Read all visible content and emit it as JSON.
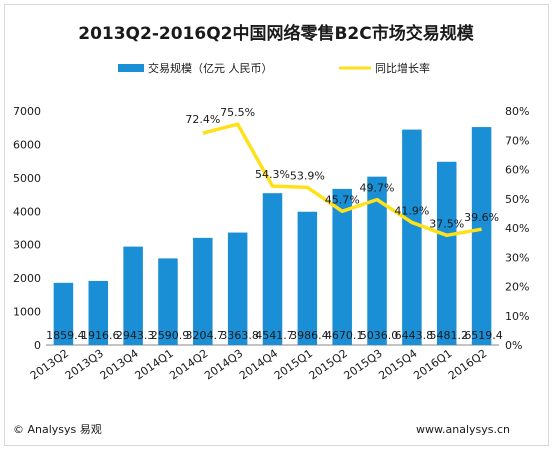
{
  "chart_data": {
    "type": "bar",
    "title": "2013Q2-2016Q2中国网络零售B2C市场交易规模",
    "categories": [
      "2013Q2",
      "2013Q3",
      "2013Q4",
      "2014Q1",
      "2014Q2",
      "2014Q3",
      "2014Q4",
      "2015Q1",
      "2015Q2",
      "2015Q3",
      "2015Q4",
      "2016Q1",
      "2016Q2"
    ],
    "series": [
      {
        "name": "交易规模（亿元 人民币）",
        "type": "bar",
        "axis": "left",
        "values": [
          1859.4,
          1916.6,
          2943.3,
          2590.9,
          3204.7,
          3363.8,
          4541.7,
          3986.4,
          4670.1,
          5036.0,
          6443.8,
          5481.2,
          6519.4
        ],
        "labels": [
          "1859.4",
          "1916.6",
          "2943.3",
          "2590.9",
          "3204.7",
          "3363.8",
          "4541.7",
          "3986.4",
          "4670.1",
          "5036.0",
          "6443.8",
          "5481.2",
          "6519.4"
        ]
      },
      {
        "name": "同比增长率",
        "type": "line",
        "axis": "right",
        "values": [
          null,
          null,
          null,
          null,
          72.4,
          75.5,
          54.3,
          53.9,
          45.7,
          49.7,
          41.9,
          37.5,
          39.6
        ],
        "labels": [
          null,
          null,
          null,
          null,
          "72.4%",
          "75.5%",
          "54.3%",
          "53.9%",
          "45.7%",
          "49.7%",
          "41.9%",
          "37.5%",
          "39.6%"
        ]
      }
    ],
    "ylim": [
      0,
      7000
    ],
    "y_ticks": [
      "0",
      "1000",
      "2000",
      "3000",
      "4000",
      "5000",
      "6000",
      "7000"
    ],
    "y2lim": [
      0,
      80
    ],
    "y2_ticks": [
      "0%",
      "10%",
      "20%",
      "30%",
      "40%",
      "50%",
      "60%",
      "70%",
      "80%"
    ],
    "legend_position": "top",
    "grid": false,
    "colors": {
      "bar": "#1a8fd6",
      "line": "#ffe11a",
      "text": "#1a1a1a",
      "axis": "#888888"
    }
  },
  "footer": {
    "left": "© Analysys 易观",
    "right": "www.analysys.cn"
  }
}
